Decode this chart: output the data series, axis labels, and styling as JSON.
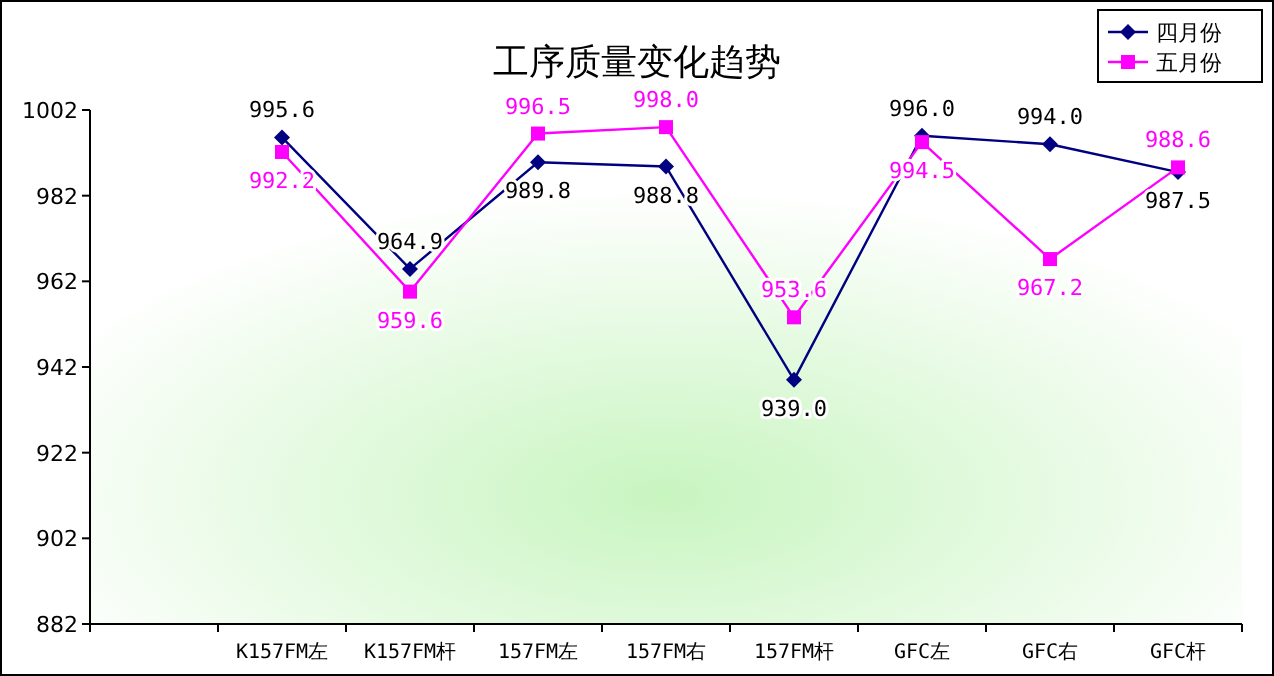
{
  "chart_data": {
    "type": "line",
    "title": "工序质量变化趋势",
    "categories": [
      null,
      "K157FM左",
      "K157FM杆",
      "157FM左",
      "157FM右",
      "157FM杆",
      "GFC左",
      "GFC右",
      "GFC杆"
    ],
    "series": [
      {
        "name": "四月份",
        "color": "#000080",
        "marker": "diamond",
        "values": [
          null,
          995.6,
          964.9,
          989.8,
          988.8,
          939.0,
          996.0,
          994.0,
          987.5
        ],
        "value_labels": [
          null,
          "995.6",
          "964.9",
          "989.8",
          "988.8",
          "939.0",
          "996.0",
          "994.0",
          "987.5"
        ]
      },
      {
        "name": "五月份",
        "color": "#ff00ff",
        "marker": "square",
        "values": [
          null,
          992.2,
          959.6,
          996.5,
          998.0,
          953.6,
          994.5,
          967.2,
          988.6
        ],
        "value_labels": [
          null,
          "992.2",
          "959.6",
          "996.5",
          "998.0",
          "953.6",
          "994.5",
          "967.2",
          "988.6"
        ]
      }
    ],
    "ylim": [
      882,
      1002
    ],
    "yticks": [
      882,
      902,
      922,
      942,
      962,
      982,
      1002
    ],
    "legend": "top right"
  }
}
